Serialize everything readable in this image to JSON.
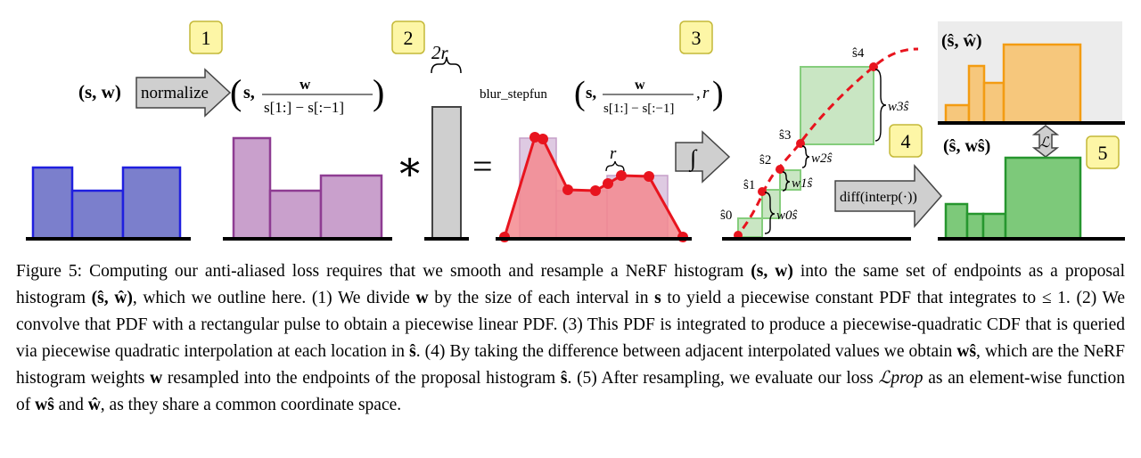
{
  "figure": {
    "steps": [
      "1",
      "2",
      "3",
      "4",
      "5"
    ],
    "input_label": "(s, w)",
    "normalize_label": "normalize",
    "normalized_label": "(s, w / (s[1:] − s[:−1]))",
    "kernel_width_label": "2r",
    "convolve_symbol": "∗",
    "equals_symbol": "=",
    "blur_label": "blur_stepfun(s, w / (s[1:] − s[:−1]), r)",
    "blur_fn": "blur_stepfun",
    "r_label": "r",
    "integral_symbol": "∫",
    "cdf_s_labels": [
      "ŝ0",
      "ŝ1",
      "ŝ2",
      "ŝ3",
      "ŝ4"
    ],
    "cdf_w_labels": [
      "w0ŝ",
      "w1ŝ",
      "w2ŝ",
      "w3ŝ"
    ],
    "diff_label": "diff(interp(·))",
    "proposal_label": "(ŝ, ŵ)",
    "resampled_label": "(ŝ, wŝ)",
    "loss_symbol": "ℒ",
    "colors": {
      "blue_fill": "#7b7fcc",
      "blue_stroke": "#1f1fdf",
      "purple_fill": "#c9a0cc",
      "purple_stroke": "#8e3c92",
      "red_fill": "#f48a8f",
      "red_stroke": "#e8141e",
      "green_fill": "#c9e6c3",
      "green_stroke": "#85cd7c",
      "orange_fill": "#f6c77c",
      "orange_stroke": "#f39c12",
      "darkgreen_fill": "#7dc97a",
      "darkgreen_stroke": "#26962e",
      "badge_fill": "#fdf6a6",
      "badge_stroke": "#c4b838"
    }
  },
  "caption": {
    "p1": "Figure 5: Computing our anti-aliased loss requires that we smooth and resample a NeRF histogram ",
    "p2": "(s, w)",
    "p3": " into the same set of endpoints as a proposal histogram ",
    "p4": "(ŝ, ŵ)",
    "p5": ", which we outline here. (1) We divide ",
    "p6": "w",
    "p7": " by the size of each interval in ",
    "p8": "s",
    "p9": " to yield a piecewise constant PDF that integrates to ≤ 1. (2) We convolve that PDF with a rectangular pulse to obtain a piecewise linear PDF. (3) This PDF is integrated to produce a piecewise-quadratic CDF that is queried via piecewise quadratic interpolation at each location in ",
    "p10": "ŝ",
    "p11": ". (4) By taking the difference between adjacent interpolated values we obtain ",
    "p12": "wŝ",
    "p13": ", which are the NeRF histogram weights ",
    "p14": "w",
    "p15": " resampled into the endpoints of the proposal histogram ",
    "p16": "ŝ",
    "p17": ". (5) After resampling, we evaluate our loss ",
    "p18": "ℒprop",
    "p19": " as an element-wise function of ",
    "p20": "wŝ",
    "p21": " and ",
    "p22": "ŵ",
    "p23": ", as they share a common coordinate space."
  }
}
